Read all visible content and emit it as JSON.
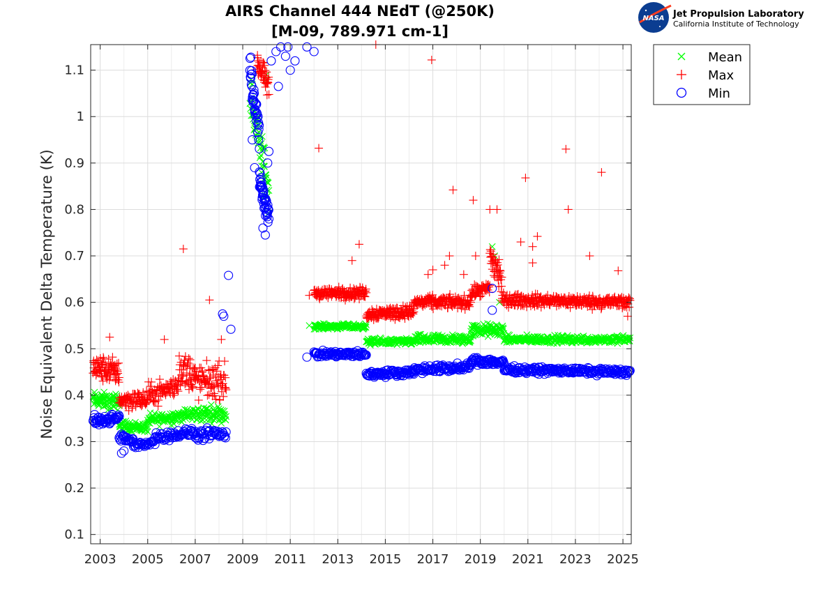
{
  "logo": {
    "badge_text": "NASA",
    "line1": "Jet Propulsion Laboratory",
    "line2": "California Institute of Technology"
  },
  "chart_data": {
    "type": "scatter",
    "title": "AIRS Channel 444 NEdT (@250K)",
    "subtitle": "[M-09, 789.971 cm-1]",
    "xlabel": "",
    "ylabel": "Noise Equivalent Delta Temperature (K)",
    "xlim": [
      2002.6,
      2025.35
    ],
    "ylim": [
      0.08,
      1.155
    ],
    "x_ticks": [
      "2003",
      "2005",
      "2007",
      "2009",
      "2011",
      "2013",
      "2015",
      "2017",
      "2019",
      "2021",
      "2023",
      "2025"
    ],
    "y_ticks": [
      "0.1",
      "0.2",
      "0.3",
      "0.4",
      "0.5",
      "0.6",
      "0.7",
      "0.8",
      "0.9",
      "1",
      "1.1"
    ],
    "grid": true,
    "legend_position": "outside-top-right",
    "colors": {
      "mean": "#00ff00",
      "max": "#ff0000",
      "min": "#0000ff"
    },
    "series": [
      {
        "name": "Mean",
        "marker": "x",
        "segments": [
          {
            "x0": 2002.7,
            "x1": 2003.8,
            "y0": 0.39,
            "y1": 0.385,
            "noise": 0.025,
            "count": 70
          },
          {
            "x0": 2003.8,
            "x1": 2005.0,
            "y0": 0.335,
            "y1": 0.33,
            "noise": 0.015,
            "count": 70
          },
          {
            "x0": 2005.0,
            "x1": 2007.0,
            "y0": 0.345,
            "y1": 0.36,
            "noise": 0.02,
            "count": 110
          },
          {
            "x0": 2007.0,
            "x1": 2008.3,
            "y0": 0.36,
            "y1": 0.36,
            "noise": 0.025,
            "count": 70
          },
          {
            "x0": 2009.3,
            "x1": 2010.1,
            "y0": 1.05,
            "y1": 0.84,
            "noise": 0.07,
            "count": 60
          },
          {
            "x0": 2012.0,
            "x1": 2014.2,
            "y0": 0.548,
            "y1": 0.548,
            "noise": 0.008,
            "count": 130
          },
          {
            "x0": 2014.2,
            "x1": 2016.2,
            "y0": 0.515,
            "y1": 0.515,
            "noise": 0.01,
            "count": 120
          },
          {
            "x0": 2016.2,
            "x1": 2018.6,
            "y0": 0.52,
            "y1": 0.52,
            "noise": 0.015,
            "count": 140
          },
          {
            "x0": 2018.6,
            "x1": 2020.0,
            "y0": 0.54,
            "y1": 0.54,
            "noise": 0.02,
            "count": 90
          },
          {
            "x0": 2020.0,
            "x1": 2025.3,
            "y0": 0.52,
            "y1": 0.52,
            "noise": 0.012,
            "count": 300
          }
        ],
        "extra_points": [
          [
            2011.8,
            0.55
          ],
          [
            2019.5,
            0.72
          ],
          [
            2019.6,
            0.7
          ],
          [
            2019.8,
            0.6
          ],
          [
            2010.0,
            1.08
          ],
          [
            2010.0,
            1.09
          ]
        ]
      },
      {
        "name": "Max",
        "marker": "+",
        "segments": [
          {
            "x0": 2002.7,
            "x1": 2003.8,
            "y0": 0.46,
            "y1": 0.45,
            "noise": 0.04,
            "count": 80
          },
          {
            "x0": 2003.8,
            "x1": 2005.0,
            "y0": 0.39,
            "y1": 0.39,
            "noise": 0.03,
            "count": 70
          },
          {
            "x0": 2005.0,
            "x1": 2006.3,
            "y0": 0.4,
            "y1": 0.42,
            "noise": 0.035,
            "count": 70
          },
          {
            "x0": 2006.3,
            "x1": 2007.0,
            "y0": 0.46,
            "y1": 0.44,
            "noise": 0.06,
            "count": 50
          },
          {
            "x0": 2007.0,
            "x1": 2008.3,
            "y0": 0.43,
            "y1": 0.43,
            "noise": 0.055,
            "count": 80
          },
          {
            "x0": 2009.6,
            "x1": 2010.1,
            "y0": 1.12,
            "y1": 1.06,
            "noise": 0.04,
            "count": 45
          },
          {
            "x0": 2012.0,
            "x1": 2014.2,
            "y0": 0.62,
            "y1": 0.62,
            "noise": 0.018,
            "count": 140
          },
          {
            "x0": 2014.2,
            "x1": 2016.2,
            "y0": 0.575,
            "y1": 0.58,
            "noise": 0.02,
            "count": 130
          },
          {
            "x0": 2016.2,
            "x1": 2018.6,
            "y0": 0.6,
            "y1": 0.6,
            "noise": 0.02,
            "count": 140
          },
          {
            "x0": 2018.6,
            "x1": 2019.4,
            "y0": 0.62,
            "y1": 0.63,
            "noise": 0.02,
            "count": 50
          },
          {
            "x0": 2019.4,
            "x1": 2019.9,
            "y0": 0.7,
            "y1": 0.65,
            "noise": 0.06,
            "count": 40
          },
          {
            "x0": 2019.9,
            "x1": 2025.3,
            "y0": 0.605,
            "y1": 0.6,
            "noise": 0.02,
            "count": 320
          }
        ],
        "extra_points": [
          [
            2006.5,
            0.715
          ],
          [
            2007.6,
            0.605
          ],
          [
            2003.4,
            0.525
          ],
          [
            2005.7,
            0.52
          ],
          [
            2008.1,
            0.52
          ],
          [
            2012.2,
            0.932
          ],
          [
            2014.6,
            1.155
          ],
          [
            2016.95,
            1.122
          ],
          [
            2017.85,
            0.842
          ],
          [
            2018.7,
            0.82
          ],
          [
            2018.8,
            0.7
          ],
          [
            2013.6,
            0.69
          ],
          [
            2013.9,
            0.725
          ],
          [
            2017.0,
            0.67
          ],
          [
            2017.5,
            0.68
          ],
          [
            2017.7,
            0.7
          ],
          [
            2019.4,
            0.8
          ],
          [
            2019.7,
            0.8
          ],
          [
            2020.7,
            0.73
          ],
          [
            2020.9,
            0.868
          ],
          [
            2021.2,
            0.685
          ],
          [
            2021.2,
            0.72
          ],
          [
            2021.4,
            0.742
          ],
          [
            2022.6,
            0.93
          ],
          [
            2022.7,
            0.8
          ],
          [
            2023.6,
            0.7
          ],
          [
            2024.1,
            0.88
          ],
          [
            2024.8,
            0.668
          ],
          [
            2025.2,
            0.57
          ],
          [
            2011.8,
            0.615
          ],
          [
            2016.8,
            0.66
          ],
          [
            2018.3,
            0.66
          ]
        ]
      },
      {
        "name": "Min",
        "marker": "o",
        "segments": [
          {
            "x0": 2002.7,
            "x1": 2003.8,
            "y0": 0.345,
            "y1": 0.35,
            "noise": 0.016,
            "count": 55
          },
          {
            "x0": 2003.8,
            "x1": 2004.4,
            "y0": 0.31,
            "y1": 0.3,
            "noise": 0.012,
            "count": 25
          },
          {
            "x0": 2004.4,
            "x1": 2005.3,
            "y0": 0.29,
            "y1": 0.3,
            "noise": 0.01,
            "count": 30
          },
          {
            "x0": 2005.3,
            "x1": 2007.0,
            "y0": 0.31,
            "y1": 0.32,
            "noise": 0.014,
            "count": 60
          },
          {
            "x0": 2007.0,
            "x1": 2008.3,
            "y0": 0.315,
            "y1": 0.315,
            "noise": 0.018,
            "count": 45
          },
          {
            "x0": 2009.3,
            "x1": 2009.7,
            "y0": 1.1,
            "y1": 0.96,
            "noise": 0.05,
            "count": 40
          },
          {
            "x0": 2009.7,
            "x1": 2010.1,
            "y0": 0.86,
            "y1": 0.79,
            "noise": 0.04,
            "count": 45
          },
          {
            "x0": 2012.0,
            "x1": 2014.2,
            "y0": 0.488,
            "y1": 0.488,
            "noise": 0.01,
            "count": 90
          },
          {
            "x0": 2014.2,
            "x1": 2016.2,
            "y0": 0.445,
            "y1": 0.45,
            "noise": 0.01,
            "count": 85
          },
          {
            "x0": 2016.2,
            "x1": 2018.6,
            "y0": 0.455,
            "y1": 0.46,
            "noise": 0.012,
            "count": 95
          },
          {
            "x0": 2018.6,
            "x1": 2020.0,
            "y0": 0.475,
            "y1": 0.47,
            "noise": 0.012,
            "count": 60
          },
          {
            "x0": 2020.0,
            "x1": 2025.3,
            "y0": 0.455,
            "y1": 0.45,
            "noise": 0.01,
            "count": 210
          }
        ],
        "extra_points": [
          [
            2008.4,
            0.658
          ],
          [
            2008.15,
            0.575
          ],
          [
            2008.2,
            0.57
          ],
          [
            2008.5,
            0.542
          ],
          [
            2011.7,
            0.482
          ],
          [
            2010.5,
            1.065
          ],
          [
            2010.2,
            1.12
          ],
          [
            2010.4,
            1.14
          ],
          [
            2010.8,
            1.13
          ],
          [
            2011.0,
            1.1
          ],
          [
            2011.2,
            1.12
          ],
          [
            2011.7,
            1.15
          ],
          [
            2012.0,
            1.14
          ],
          [
            2010.6,
            1.15
          ],
          [
            2010.9,
            1.15
          ],
          [
            2009.4,
            0.95
          ],
          [
            2009.5,
            0.89
          ],
          [
            2009.85,
            0.76
          ],
          [
            2009.95,
            0.745
          ],
          [
            2010.05,
            0.9
          ],
          [
            2010.1,
            0.925
          ],
          [
            2019.5,
            0.63
          ],
          [
            2019.5,
            0.583
          ],
          [
            2003.9,
            0.275
          ],
          [
            2004.0,
            0.28
          ]
        ]
      }
    ]
  }
}
